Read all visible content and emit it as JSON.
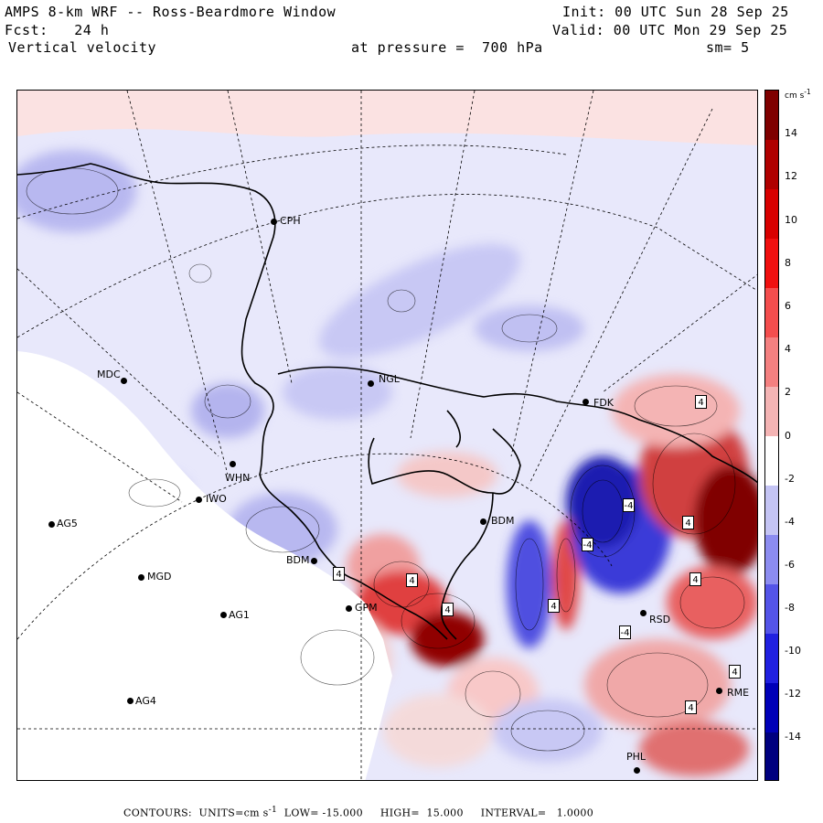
{
  "header": {
    "title": "AMPS 8-km WRF -- Ross-Beardmore Window",
    "forecast": "Fcst:   24 h",
    "variable": "Vertical velocity",
    "init": "Init: 00 UTC Sun 28 Sep 25",
    "valid": "Valid: 00 UTC Mon 29 Sep 25",
    "pressure": "at pressure =  700 hPa",
    "smoothing": "sm= 5"
  },
  "colorbar": {
    "units": "cm s",
    "units_exponent": "-1",
    "tick_labels": [
      "14",
      "12",
      "10",
      "8",
      "6",
      "4",
      "2",
      "0",
      "-2",
      "-4",
      "-6",
      "-8",
      "-10",
      "-12",
      "-14"
    ],
    "range": [
      -15,
      15
    ],
    "colors": {
      "max_red": "#7f0000",
      "red": "#e00000",
      "light_red": "#f4b4b4",
      "white": "#ffffff",
      "light_blue": "#c4c4f4",
      "blue": "#2020e0",
      "max_blue": "#00007f"
    }
  },
  "stations": [
    {
      "code": "CPH"
    },
    {
      "code": "MDC"
    },
    {
      "code": "NGL"
    },
    {
      "code": "FDK"
    },
    {
      "code": "WHN"
    },
    {
      "code": "IWO"
    },
    {
      "code": "AG5"
    },
    {
      "code": "BDM"
    },
    {
      "code": "BDM"
    },
    {
      "code": "MGD"
    },
    {
      "code": "AG1"
    },
    {
      "code": "GPM"
    },
    {
      "code": "AG4"
    },
    {
      "code": "RSD"
    },
    {
      "code": "PHL"
    },
    {
      "code": "RME"
    }
  ],
  "contour_labels": [
    "4",
    "4",
    "-4",
    "4",
    "4",
    "-4",
    "4",
    "-4",
    "4",
    "4",
    "4",
    "4"
  ],
  "footer": {
    "contours_label": "CONTOURS:",
    "units_label": "UNITS=cm s",
    "units_exponent": "-1",
    "low": "LOW= -15.000",
    "high": "HIGH=  15.000",
    "interval": "INTERVAL=   1.0000"
  }
}
